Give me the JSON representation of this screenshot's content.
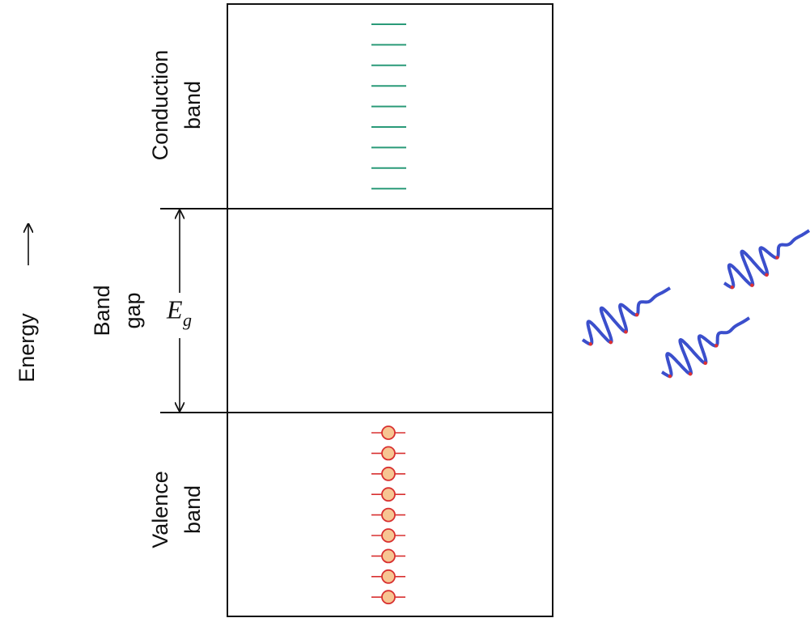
{
  "energy_label": "Energy",
  "conduction_band": {
    "lines": [
      "Conduction",
      "band"
    ]
  },
  "band_gap": {
    "lines": [
      "Band",
      "gap"
    ],
    "symbol": "E",
    "subscript": "g"
  },
  "valence_band": {
    "lines": [
      "Valence",
      "band"
    ]
  }
}
